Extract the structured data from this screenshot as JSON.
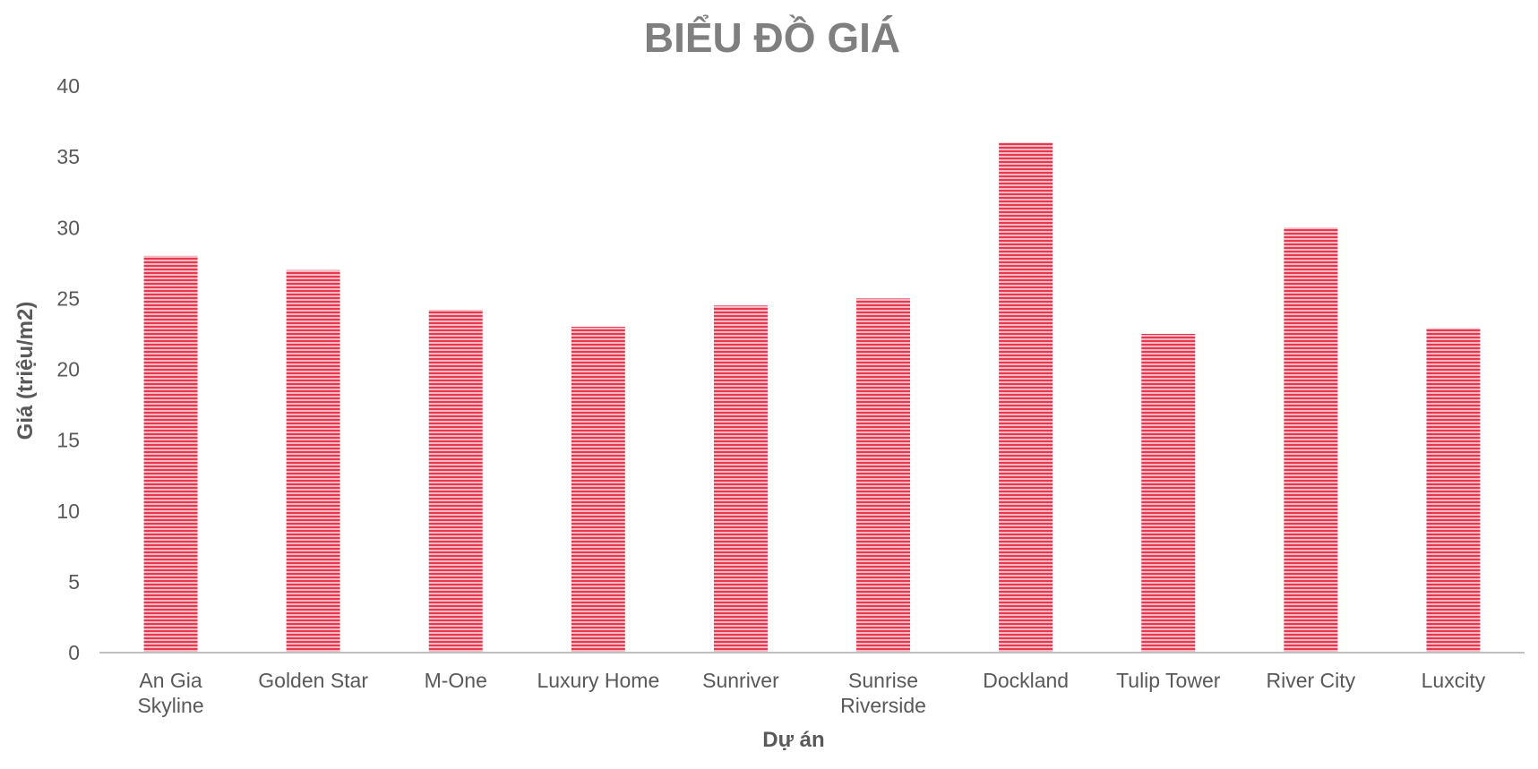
{
  "colors": {
    "bar_main": "#e8384f",
    "bar_light": "#f6b9c2",
    "axis_line": "#c0c0c0",
    "title": "#7f7f7f",
    "text": "#595959"
  },
  "chart_data": {
    "type": "bar",
    "title": "BIỂU ĐỒ GIÁ",
    "xlabel": "Dự án",
    "ylabel": "Giá (triệu/m2)",
    "ylim": [
      0,
      40
    ],
    "yticks": [
      "0",
      "5",
      "10",
      "15",
      "20",
      "25",
      "30",
      "35",
      "40"
    ],
    "grid": false,
    "legend": "none",
    "categories": [
      "An Gia Skyline",
      "Golden Star",
      "M-One",
      "Luxury Home",
      "Sunriver",
      "Sunrise Riverside",
      "Dockland",
      "Tulip Tower",
      "River City",
      "Luxcity"
    ],
    "values": [
      28,
      27,
      24.2,
      23,
      24.5,
      25,
      36,
      22.5,
      30,
      22.9
    ]
  }
}
